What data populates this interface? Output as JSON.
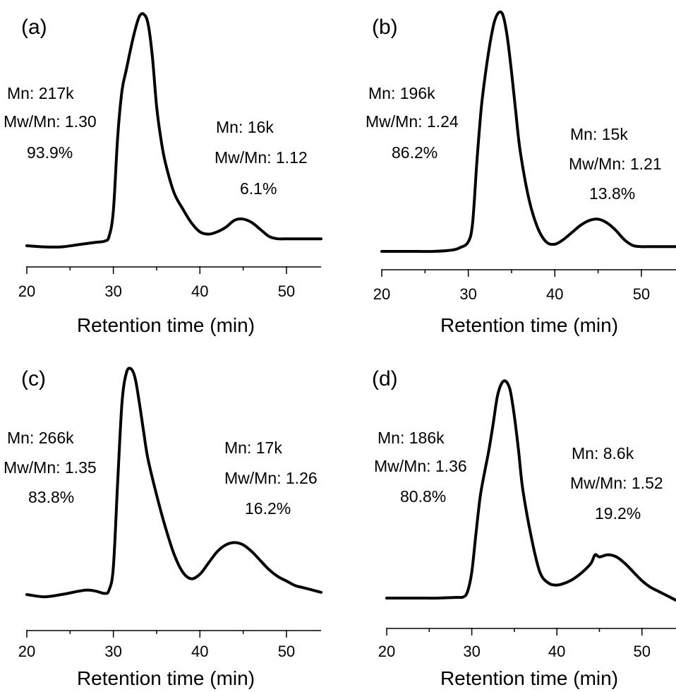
{
  "chart_data": [
    {
      "id": "a",
      "type": "line",
      "panel_label": "(a)",
      "xlabel": "Retention time (min)",
      "ylabel": "",
      "xlim": [
        20,
        54
      ],
      "ylim": [
        0,
        1
      ],
      "xticks": [
        20,
        30,
        40,
        50
      ],
      "x": [
        20,
        22,
        24,
        26,
        28,
        29,
        29.5,
        30,
        30.5,
        31,
        31.5,
        32,
        32.5,
        33,
        33.5,
        34,
        34.5,
        35,
        35.5,
        36,
        37,
        38,
        39,
        40,
        41,
        42,
        43,
        44,
        45,
        46,
        47,
        48,
        49,
        50,
        51,
        52,
        53,
        54
      ],
      "y": [
        0.0,
        -0.005,
        -0.005,
        0.005,
        0.015,
        0.02,
        0.04,
        0.15,
        0.47,
        0.67,
        0.76,
        0.85,
        0.93,
        0.99,
        1.0,
        0.96,
        0.82,
        0.6,
        0.46,
        0.36,
        0.23,
        0.16,
        0.1,
        0.06,
        0.05,
        0.06,
        0.08,
        0.11,
        0.115,
        0.1,
        0.07,
        0.04,
        0.03,
        0.03,
        0.03,
        0.03,
        0.03,
        0.03
      ],
      "annotations": [
        {
          "mn_label": "Mn: 217k",
          "dispersity": "Mw/Mn: 1.30",
          "percent": "93.9%"
        },
        {
          "mn_label": "Mn: 16k",
          "dispersity": "Mw/Mn: 1.12",
          "percent": "6.1%"
        }
      ]
    },
    {
      "id": "b",
      "type": "line",
      "panel_label": "(b)",
      "xlabel": "Retention time (min)",
      "ylabel": "",
      "xlim": [
        20,
        54
      ],
      "ylim": [
        0,
        1
      ],
      "xticks": [
        20,
        30,
        40,
        50
      ],
      "x": [
        20,
        22,
        24,
        26,
        28,
        29,
        30,
        30.5,
        31,
        31.5,
        32,
        32.5,
        33,
        33.5,
        34,
        34.5,
        35,
        35.5,
        36,
        37,
        38,
        39,
        40,
        41,
        42,
        43,
        44,
        45,
        46,
        47,
        48,
        49,
        50,
        51,
        52,
        53,
        54
      ],
      "y": [
        0.0,
        0.0,
        0.0,
        0.0,
        0.005,
        0.015,
        0.04,
        0.12,
        0.38,
        0.6,
        0.75,
        0.87,
        0.96,
        1.0,
        0.99,
        0.9,
        0.75,
        0.58,
        0.42,
        0.22,
        0.1,
        0.04,
        0.03,
        0.05,
        0.08,
        0.11,
        0.13,
        0.135,
        0.12,
        0.09,
        0.05,
        0.025,
        0.02,
        0.02,
        0.02,
        0.02,
        0.02
      ],
      "annotations": [
        {
          "mn_label": "Mn: 196k",
          "dispersity": "Mw/Mn: 1.24",
          "percent": "86.2%"
        },
        {
          "mn_label": "Mn: 15k",
          "dispersity": "Mw/Mn: 1.21",
          "percent": "13.8%"
        }
      ]
    },
    {
      "id": "c",
      "type": "line",
      "panel_label": "(c)",
      "xlabel": "Retention time (min)",
      "ylabel": "",
      "xlim": [
        20,
        54
      ],
      "ylim": [
        0,
        1
      ],
      "xticks": [
        20,
        30,
        40,
        50
      ],
      "x": [
        20,
        22,
        24,
        26,
        27,
        28,
        29,
        29.5,
        30,
        30.5,
        31,
        31.5,
        32,
        32.5,
        33,
        33.5,
        34,
        35,
        36,
        37,
        38,
        39,
        40,
        41,
        42,
        43,
        44,
        45,
        46,
        47,
        48,
        49,
        50,
        51,
        52,
        53,
        54
      ],
      "y": [
        0.0,
        -0.01,
        0.0,
        0.015,
        0.02,
        0.015,
        0.005,
        0.02,
        0.12,
        0.5,
        0.85,
        0.98,
        1.0,
        0.96,
        0.85,
        0.72,
        0.6,
        0.44,
        0.3,
        0.18,
        0.1,
        0.07,
        0.09,
        0.14,
        0.19,
        0.22,
        0.23,
        0.22,
        0.19,
        0.15,
        0.11,
        0.08,
        0.06,
        0.04,
        0.03,
        0.02,
        0.01
      ],
      "annotations": [
        {
          "mn_label": "Mn: 266k",
          "dispersity": "Mw/Mn: 1.35",
          "percent": "83.8%"
        },
        {
          "mn_label": "Mn: 17k",
          "dispersity": "Mw/Mn: 1.26",
          "percent": "16.2%"
        }
      ]
    },
    {
      "id": "d",
      "type": "line",
      "panel_label": "(d)",
      "xlabel": "Retention time (min)",
      "ylabel": "",
      "xlim": [
        20,
        54
      ],
      "ylim": [
        0,
        1
      ],
      "xticks": [
        20,
        30,
        40,
        50
      ],
      "x": [
        20,
        22,
        24,
        26,
        28,
        29,
        29.5,
        30,
        30.5,
        31,
        31.5,
        32,
        32.5,
        33,
        33.5,
        34,
        34.5,
        35,
        35.5,
        36,
        37,
        38,
        39,
        40,
        41,
        42,
        43,
        44,
        44.5,
        45,
        46,
        47,
        48,
        49,
        50,
        51,
        52,
        53,
        54
      ],
      "y": [
        0.0,
        0.0,
        0.0,
        0.0,
        0.003,
        0.005,
        0.03,
        0.12,
        0.3,
        0.47,
        0.58,
        0.68,
        0.8,
        0.93,
        0.99,
        1.0,
        0.96,
        0.84,
        0.68,
        0.5,
        0.28,
        0.12,
        0.07,
        0.06,
        0.07,
        0.09,
        0.12,
        0.16,
        0.2,
        0.19,
        0.2,
        0.19,
        0.16,
        0.12,
        0.08,
        0.05,
        0.03,
        0.01,
        -0.01
      ],
      "annotations": [
        {
          "mn_label": "Mn: 186k",
          "dispersity": "Mw/Mn: 1.36",
          "percent": "80.8%"
        },
        {
          "mn_label": "Mn: 8.6k",
          "dispersity": "Mw/Mn: 1.52",
          "percent": "19.2%"
        }
      ]
    }
  ]
}
